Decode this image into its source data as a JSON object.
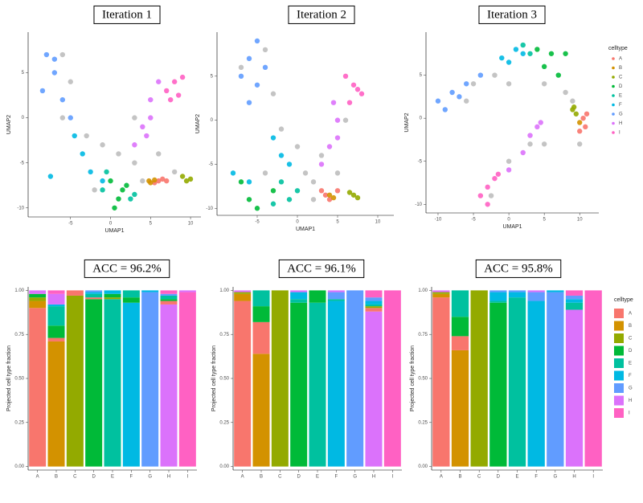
{
  "chart_data": [
    {
      "type": "scatter",
      "title": "Iteration 1",
      "xlabel": "UMAP1",
      "ylabel": "UMAP2",
      "xlim": [
        -10.3,
        11.3
      ],
      "ylim": [
        -11,
        9.5
      ],
      "xticks": [
        -5,
        0,
        5,
        10
      ],
      "yticks": [
        -10,
        -5,
        0,
        5
      ],
      "series": [
        {
          "color": "#bebebe",
          "x": [
            -6,
            -5,
            -6,
            -3,
            -1,
            1,
            3,
            3,
            6,
            8,
            -2,
            4
          ],
          "values": [
            7,
            4,
            0,
            -2,
            -3,
            -4,
            -5,
            0,
            -4,
            -6,
            -8,
            -7
          ]
        },
        {
          "color": "#F8766D",
          "x": [
            6,
            6.5,
            7,
            5.5
          ],
          "values": [
            -7,
            -6.8,
            -7,
            -7.2
          ]
        },
        {
          "color": "#D39200",
          "x": [
            5,
            5.5,
            4.8
          ],
          "values": [
            -7.2,
            -6.9,
            -7
          ]
        },
        {
          "color": "#93AA00",
          "x": [
            9,
            9.5,
            10
          ],
          "values": [
            -6.5,
            -7,
            -6.8
          ]
        },
        {
          "color": "#00BA38",
          "x": [
            0,
            1,
            1.5,
            0.5,
            2
          ],
          "values": [
            -7,
            -9,
            -8,
            -10,
            -7.5
          ]
        },
        {
          "color": "#00C19F",
          "x": [
            -1,
            2.5,
            3,
            -0.5
          ],
          "values": [
            -8,
            -9,
            -8.5,
            -6
          ]
        },
        {
          "color": "#00B9E3",
          "x": [
            -3.5,
            -2.5,
            -1,
            -7.5,
            -4.5
          ],
          "values": [
            -4,
            -6,
            -7,
            -6.5,
            -2
          ]
        },
        {
          "color": "#619CFF",
          "x": [
            -8,
            -7,
            -8.5,
            -6,
            -5,
            -7
          ],
          "values": [
            7,
            5,
            3,
            2,
            0,
            6.5
          ]
        },
        {
          "color": "#DB72FB",
          "x": [
            3,
            4,
            5,
            5,
            6,
            4.5
          ],
          "values": [
            -3,
            -1,
            0,
            2,
            4,
            -2
          ]
        },
        {
          "color": "#FF61C3",
          "x": [
            7,
            8,
            8.5,
            9,
            7.5
          ],
          "values": [
            3,
            4,
            2.5,
            4.5,
            2
          ]
        }
      ]
    },
    {
      "type": "scatter",
      "title": "Iteration 2",
      "xlabel": "UMAP1",
      "ylabel": "UMAP2",
      "xlim": [
        -10,
        12
      ],
      "ylim": [
        -10.8,
        10
      ],
      "xticks": [
        -5,
        0,
        5,
        10
      ],
      "yticks": [
        -10,
        -5,
        0,
        5
      ],
      "series": [
        {
          "color": "#bebebe",
          "x": [
            -4,
            -7,
            -3,
            -2,
            0,
            1,
            2,
            3,
            6,
            5,
            -4,
            2
          ],
          "values": [
            8,
            6,
            3,
            -1,
            -3,
            -6,
            -7,
            -4,
            0,
            -6,
            -6,
            -9
          ]
        },
        {
          "color": "#F8766D",
          "x": [
            3,
            4,
            3.5,
            5
          ],
          "values": [
            -8,
            -9,
            -8.5,
            -8
          ]
        },
        {
          "color": "#D39200",
          "x": [
            4.5,
            4
          ],
          "values": [
            -8.8,
            -8.5
          ]
        },
        {
          "color": "#93AA00",
          "x": [
            7,
            7.5,
            6.5
          ],
          "values": [
            -8.5,
            -8.8,
            -8.2
          ]
        },
        {
          "color": "#00BA38",
          "x": [
            -7,
            -6,
            -5,
            -3
          ],
          "values": [
            -7,
            -9,
            -10,
            -8
          ]
        },
        {
          "color": "#00C19F",
          "x": [
            -2,
            -1,
            -3,
            0
          ],
          "values": [
            -7,
            -9,
            -9.5,
            -8
          ]
        },
        {
          "color": "#00B9E3",
          "x": [
            -3,
            -2,
            -1,
            -8,
            -6
          ],
          "values": [
            -2,
            -4,
            -5,
            -6,
            -7
          ]
        },
        {
          "color": "#619CFF",
          "x": [
            -5,
            -6,
            -7,
            -5,
            -6,
            -4
          ],
          "values": [
            9,
            7,
            5,
            4,
            2,
            6
          ]
        },
        {
          "color": "#DB72FB",
          "x": [
            3,
            4,
            5,
            5,
            4.5
          ],
          "values": [
            -5,
            -3,
            -2,
            0,
            2
          ]
        },
        {
          "color": "#FF61C3",
          "x": [
            6,
            7,
            8,
            6.5,
            7.5
          ],
          "values": [
            5,
            4,
            3,
            2,
            3.5
          ]
        }
      ]
    },
    {
      "type": "scatter",
      "title": "Iteration 3",
      "xlabel": "UMAP1",
      "ylabel": "UMAP2",
      "xlim": [
        -11.7,
        12.7
      ],
      "ylim": [
        -11,
        10
      ],
      "xticks": [
        -10,
        -5,
        0,
        5,
        10
      ],
      "yticks": [
        -10,
        -5,
        0,
        5
      ],
      "legend": "right",
      "legend_title": "celltype",
      "series": [
        {
          "color": "#bebebe",
          "x": [
            -5,
            -2,
            0,
            5,
            8,
            9,
            10,
            5,
            0,
            -2.5,
            3,
            -6
          ],
          "values": [
            4,
            5,
            4,
            4,
            3,
            2,
            -3,
            -3,
            -5,
            -9,
            -3,
            2
          ]
        },
        {
          "name": "A",
          "color": "#F8766D",
          "x": [
            10.5,
            10.8,
            10,
            11
          ],
          "values": [
            0,
            -1,
            -1.5,
            0.5
          ]
        },
        {
          "name": "B",
          "color": "#D39200",
          "x": [
            10
          ],
          "values": [
            -0.5
          ]
        },
        {
          "name": "C",
          "color": "#93AA00",
          "x": [
            9,
            9.5,
            9.2
          ],
          "values": [
            1,
            0.5,
            1.3
          ]
        },
        {
          "name": "D",
          "color": "#00BA38",
          "x": [
            4,
            6,
            8,
            5,
            7
          ],
          "values": [
            8,
            7.5,
            7.5,
            6,
            5
          ]
        },
        {
          "name": "E",
          "color": "#00C19F",
          "x": [
            3,
            2
          ],
          "values": [
            7.5,
            8.5
          ]
        },
        {
          "name": "F",
          "color": "#00B9E3",
          "x": [
            -1,
            1,
            2,
            0
          ],
          "values": [
            7,
            8,
            7.5,
            6.5
          ]
        },
        {
          "name": "G",
          "color": "#619CFF",
          "x": [
            -10,
            -8,
            -6,
            -9,
            -4,
            -7
          ],
          "values": [
            2,
            3,
            4,
            1,
            5,
            2.5
          ]
        },
        {
          "name": "H",
          "color": "#DB72FB",
          "x": [
            3,
            4,
            4.5,
            2,
            0
          ],
          "values": [
            -2,
            -1,
            -0.5,
            -4,
            -6
          ]
        },
        {
          "name": "I",
          "color": "#FF61C3",
          "x": [
            -2,
            -3,
            -3,
            -1.5,
            -4
          ],
          "values": [
            -7,
            -8,
            -10,
            -6.5,
            -9
          ]
        }
      ]
    },
    {
      "type": "bar",
      "stacked": true,
      "title": "ACC = 96.2%",
      "ylabel": "Projected cell type fraction",
      "categories": [
        "A",
        "B",
        "C",
        "D",
        "E",
        "F",
        "G",
        "H",
        "I"
      ],
      "ylim": [
        -0.02,
        1.02
      ],
      "yticks": [
        {
          "value": 0,
          "label": "0.00"
        },
        {
          "value": 0.25,
          "label": "0.25"
        },
        {
          "value": 0.5,
          "label": "0.50"
        },
        {
          "value": 0.75,
          "label": "0.75"
        },
        {
          "value": 1,
          "label": "1.00"
        }
      ],
      "series": [
        {
          "color": "#F8766D",
          "values": [
            0.9,
            0.02,
            0.03,
            0.01,
            0,
            0,
            0,
            0.02,
            0
          ]
        },
        {
          "color": "#D39200",
          "values": [
            0.04,
            0.71,
            0,
            0,
            0,
            0,
            0,
            0,
            0
          ]
        },
        {
          "color": "#93AA00",
          "values": [
            0.02,
            0,
            0.97,
            0,
            0.01,
            0,
            0,
            0,
            0
          ]
        },
        {
          "color": "#00BA38",
          "values": [
            0.02,
            0.07,
            0,
            0.95,
            0.02,
            0.03,
            0,
            0.01,
            0
          ]
        },
        {
          "color": "#00C19F",
          "values": [
            0,
            0.11,
            0,
            0.02,
            0.95,
            0.04,
            0,
            0.02,
            0
          ]
        },
        {
          "color": "#00B9E3",
          "values": [
            0,
            0.01,
            0,
            0.01,
            0.02,
            0.93,
            0.01,
            0,
            0
          ]
        },
        {
          "color": "#619CFF",
          "values": [
            0,
            0,
            0,
            0.01,
            0,
            0,
            0.99,
            0.01,
            0
          ]
        },
        {
          "color": "#DB72FB",
          "values": [
            0.02,
            0.06,
            0,
            0,
            0,
            0,
            0,
            0.92,
            0.01
          ]
        },
        {
          "color": "#FF61C3",
          "values": [
            0,
            0.02,
            0,
            0,
            0,
            0,
            0,
            0.02,
            0.99
          ]
        }
      ]
    },
    {
      "type": "bar",
      "stacked": true,
      "title": "ACC = 96.1%",
      "ylabel": "Projected cell type fraction",
      "categories": [
        "A",
        "B",
        "C",
        "D",
        "E",
        "F",
        "G",
        "H",
        "I"
      ],
      "ylim": [
        -0.02,
        1.02
      ],
      "yticks": [
        {
          "value": 0,
          "label": "0.00"
        },
        {
          "value": 0.25,
          "label": "0.25"
        },
        {
          "value": 0.5,
          "label": "0.50"
        },
        {
          "value": 0.75,
          "label": "0.75"
        },
        {
          "value": 1,
          "label": "1.00"
        }
      ],
      "series": [
        {
          "color": "#F8766D",
          "values": [
            0.94,
            0.18,
            0,
            0,
            0,
            0,
            0,
            0.02,
            0
          ]
        },
        {
          "color": "#D39200",
          "values": [
            0.04,
            0.64,
            0,
            0,
            0,
            0,
            0,
            0,
            0
          ]
        },
        {
          "color": "#93AA00",
          "values": [
            0.01,
            0,
            1,
            0,
            0,
            0,
            0,
            0.01,
            0
          ]
        },
        {
          "color": "#00BA38",
          "values": [
            0,
            0.09,
            0,
            0.93,
            0.07,
            0,
            0,
            0,
            0
          ]
        },
        {
          "color": "#00C19F",
          "values": [
            0,
            0.09,
            0,
            0.02,
            0.93,
            0.01,
            0,
            0.01,
            0
          ]
        },
        {
          "color": "#00B9E3",
          "values": [
            0,
            0,
            0,
            0.04,
            0,
            0.94,
            0,
            0.02,
            0
          ]
        },
        {
          "color": "#619CFF",
          "values": [
            0,
            0,
            0,
            0,
            0,
            0.04,
            1,
            0.02,
            0
          ]
        },
        {
          "color": "#DB72FB",
          "values": [
            0.01,
            0,
            0,
            0.01,
            0,
            0.01,
            0,
            0.88,
            0
          ]
        },
        {
          "color": "#FF61C3",
          "values": [
            0,
            0,
            0,
            0,
            0,
            0,
            0,
            0.04,
            1
          ]
        }
      ]
    },
    {
      "type": "bar",
      "stacked": true,
      "title": "ACC = 95.8%",
      "ylabel": "Projected cell type fraction",
      "categories": [
        "A",
        "B",
        "C",
        "D",
        "E",
        "F",
        "G",
        "H",
        "I"
      ],
      "ylim": [
        -0.02,
        1.02
      ],
      "yticks": [
        {
          "value": 0,
          "label": "0.00"
        },
        {
          "value": 0.25,
          "label": "0.25"
        },
        {
          "value": 0.5,
          "label": "0.50"
        },
        {
          "value": 0.75,
          "label": "0.75"
        },
        {
          "value": 1,
          "label": "1.00"
        }
      ],
      "legend": "right",
      "legend_title": "celltype",
      "series": [
        {
          "name": "A",
          "color": "#F8766D",
          "values": [
            0.96,
            0.08,
            0,
            0,
            0,
            0,
            0,
            0,
            0
          ]
        },
        {
          "name": "B",
          "color": "#D39200",
          "values": [
            0.02,
            0.66,
            0,
            0,
            0,
            0,
            0,
            0,
            0
          ]
        },
        {
          "name": "C",
          "color": "#93AA00",
          "values": [
            0.01,
            0,
            1,
            0,
            0,
            0,
            0,
            0,
            0
          ]
        },
        {
          "name": "D",
          "color": "#00BA38",
          "values": [
            0,
            0.11,
            0,
            0.93,
            0,
            0,
            0,
            0,
            0
          ]
        },
        {
          "name": "E",
          "color": "#00C19F",
          "values": [
            0,
            0.15,
            0,
            0.01,
            0.96,
            0,
            0,
            0.04,
            0
          ]
        },
        {
          "name": "F",
          "color": "#00B9E3",
          "values": [
            0,
            0,
            0,
            0.05,
            0.03,
            0.94,
            0.01,
            0.02,
            0
          ]
        },
        {
          "name": "G",
          "color": "#619CFF",
          "values": [
            0,
            0,
            0,
            0.01,
            0.01,
            0.05,
            0.99,
            0.02,
            0
          ]
        },
        {
          "name": "H",
          "color": "#DB72FB",
          "values": [
            0.01,
            0,
            0,
            0,
            0,
            0.01,
            0,
            0.89,
            0
          ]
        },
        {
          "name": "I",
          "color": "#FF61C3",
          "values": [
            0,
            0,
            0,
            0,
            0,
            0,
            0,
            0.03,
            1
          ]
        }
      ]
    }
  ]
}
